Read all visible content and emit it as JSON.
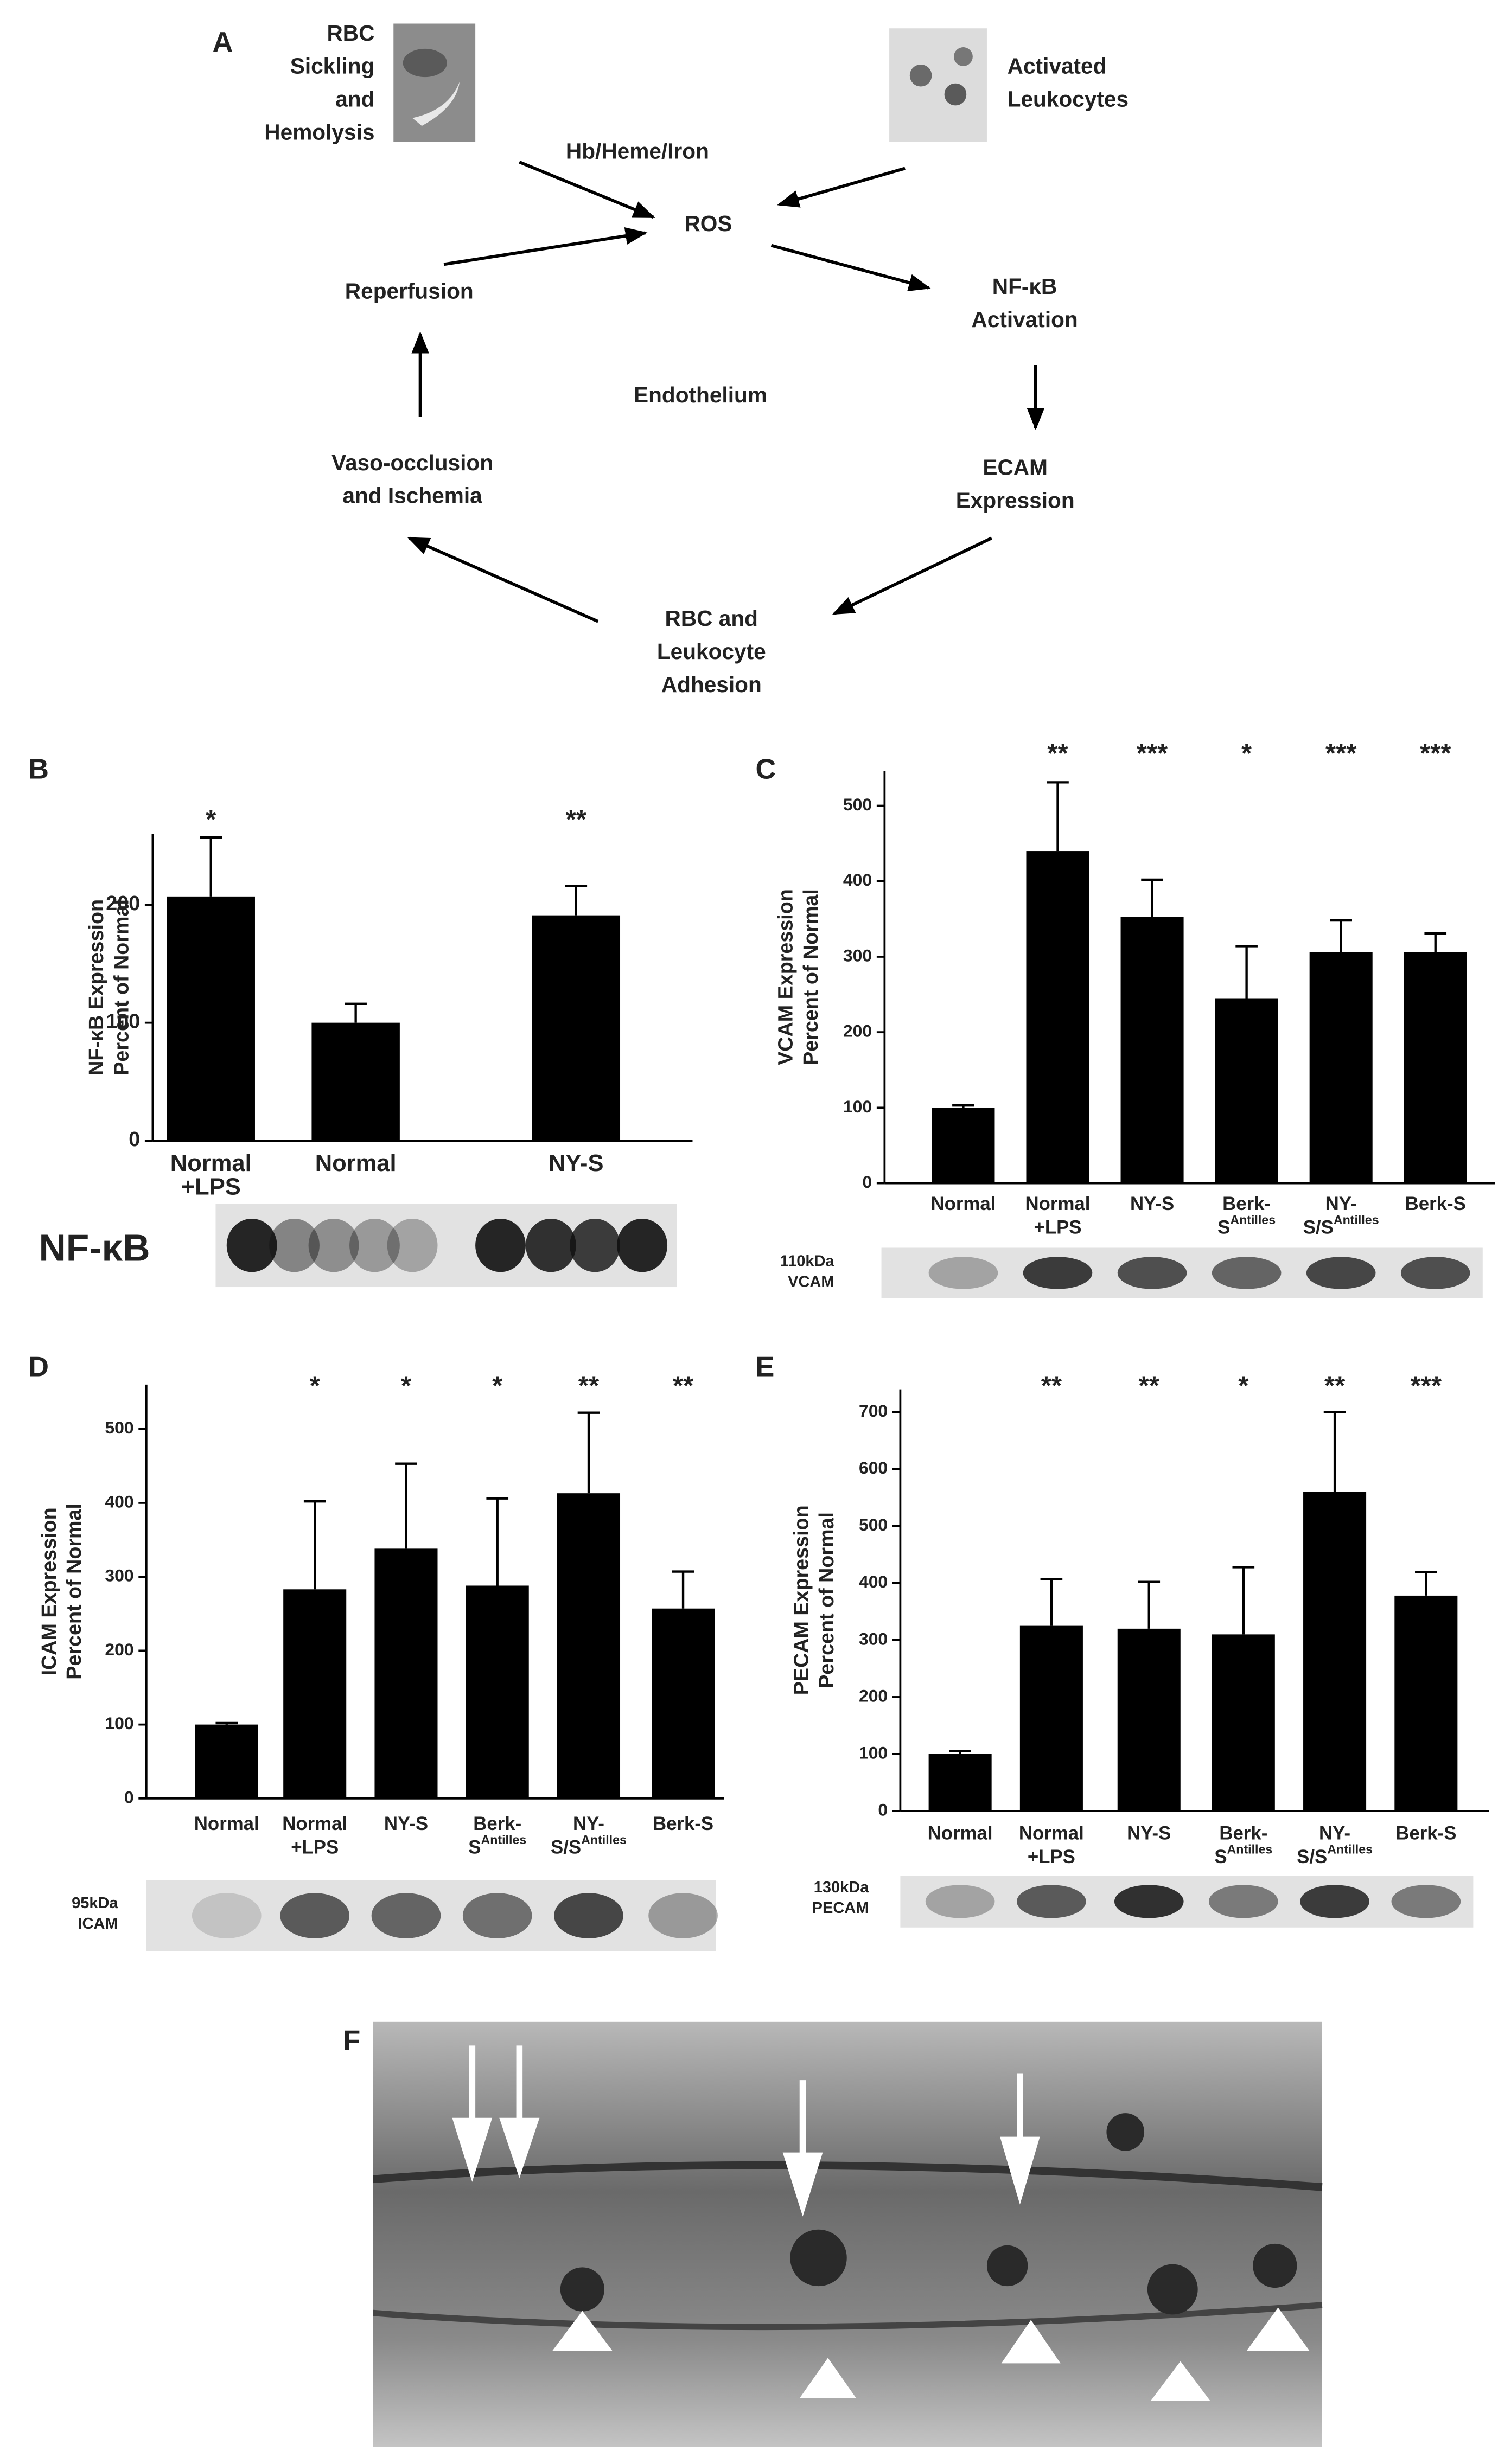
{
  "panel_a": {
    "label": "A",
    "nodes": [
      {
        "lines": [
          "RBC",
          "Sickling",
          "and",
          "Hemolysis"
        ]
      },
      {
        "lines": [
          "Activated",
          "Leukocytes"
        ]
      },
      {
        "lines": [
          "Hb/Heme/Iron"
        ]
      },
      {
        "lines": [
          "ROS"
        ]
      },
      {
        "lines": [
          "NF-κB",
          "Activation"
        ]
      },
      {
        "lines": [
          "ECAM",
          "Expression"
        ]
      },
      {
        "lines": [
          "RBC and",
          "Leukocyte",
          "Adhesion"
        ]
      },
      {
        "lines": [
          "Vaso-occlusion",
          "and Ischemia"
        ]
      },
      {
        "lines": [
          "Reperfusion"
        ]
      },
      {
        "lines": [
          "Endothelium"
        ]
      }
    ]
  },
  "chart_data": [
    {
      "type": "bar",
      "label": "B",
      "ylabel": [
        "NF-κB Expression",
        "Percent of Normal"
      ],
      "categories": [
        {
          "lines": [
            "Normal",
            "+LPS"
          ]
        },
        {
          "lines": [
            "Normal"
          ]
        },
        null,
        {
          "lines": [
            "NY-S"
          ]
        }
      ],
      "values": [
        207,
        100,
        null,
        191
      ],
      "errors": [
        50,
        16,
        null,
        25
      ],
      "annotations": [
        "*",
        null,
        null,
        "**"
      ],
      "ylim": [
        0,
        260
      ],
      "yticks": [
        0,
        100,
        200
      ],
      "color": "#000000",
      "blot_label": [
        "NF-κB"
      ]
    },
    {
      "type": "bar",
      "label": "C",
      "ylabel": [
        "VCAM Expression",
        "Percent of Normal"
      ],
      "categories": [
        {
          "lines": [
            "Normal"
          ]
        },
        {
          "lines": [
            "Normal",
            "+LPS"
          ]
        },
        {
          "lines": [
            "NY-S"
          ]
        },
        {
          "lines": [
            "Berk-",
            "S"
          ],
          "sup": "Antilles"
        },
        {
          "lines": [
            "NY-",
            "S/S"
          ],
          "sup": "Antilles"
        },
        {
          "lines": [
            "Berk-S"
          ]
        }
      ],
      "values": [
        100,
        440,
        353,
        245,
        306,
        306
      ],
      "errors": [
        3,
        91,
        49,
        69,
        42,
        25
      ],
      "annotations": [
        null,
        "**",
        "***",
        "*",
        "***",
        "***"
      ],
      "ylim": [
        0,
        546
      ],
      "yticks": [
        0,
        100,
        200,
        300,
        400,
        500
      ],
      "color": "#000000",
      "blot_label": [
        "110kDa",
        "VCAM"
      ]
    },
    {
      "type": "bar",
      "label": "D",
      "ylabel": [
        "ICAM Expression",
        "Percent of Normal"
      ],
      "categories": [
        {
          "lines": [
            "Normal"
          ]
        },
        {
          "lines": [
            "Normal",
            "+LPS"
          ]
        },
        {
          "lines": [
            "NY-S"
          ]
        },
        {
          "lines": [
            "Berk-",
            "S"
          ],
          "sup": "Antilles"
        },
        {
          "lines": [
            "NY-",
            "S/S"
          ],
          "sup": "Antilles"
        },
        {
          "lines": [
            "Berk-S"
          ]
        }
      ],
      "values": [
        100,
        283,
        338,
        288,
        413,
        257
      ],
      "errors": [
        2,
        119,
        115,
        118,
        109,
        50
      ],
      "annotations": [
        null,
        "*",
        "*",
        "*",
        "**",
        "**"
      ],
      "ylim": [
        0,
        560
      ],
      "yticks": [
        0,
        100,
        200,
        300,
        400,
        500
      ],
      "color": "#000000",
      "blot_label": [
        "95kDa",
        "ICAM"
      ]
    },
    {
      "type": "bar",
      "label": "E",
      "ylabel": [
        "PECAM Expression",
        "Percent of Normal"
      ],
      "categories": [
        {
          "lines": [
            "Normal"
          ]
        },
        {
          "lines": [
            "Normal",
            "+LPS"
          ]
        },
        {
          "lines": [
            "NY-S"
          ]
        },
        {
          "lines": [
            "Berk-",
            "S"
          ],
          "sup": "Antilles"
        },
        {
          "lines": [
            "NY-",
            "S/S"
          ],
          "sup": "Antilles"
        },
        {
          "lines": [
            "Berk-S"
          ]
        }
      ],
      "values": [
        100,
        325,
        320,
        310,
        560,
        378
      ],
      "errors": [
        5,
        82,
        82,
        118,
        140,
        41
      ],
      "annotations": [
        null,
        "**",
        "**",
        "*",
        "**",
        "***"
      ],
      "ylim": [
        0,
        740
      ],
      "yticks": [
        0,
        100,
        200,
        300,
        400,
        500,
        600,
        700
      ],
      "color": "#000000",
      "blot_label": [
        "130kDa",
        "PECAM"
      ]
    }
  ],
  "panel_f": {
    "label": "F"
  }
}
